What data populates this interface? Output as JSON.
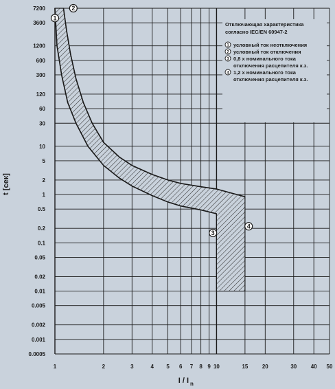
{
  "chart_data": {
    "type": "area",
    "title": "",
    "xlabel": "I / I",
    "xlabel_sub": "n",
    "ylabel": "t [сек]",
    "x_scale": "log",
    "y_scale": "log",
    "xlim": [
      1,
      50
    ],
    "ylim": [
      0.0005,
      7200
    ],
    "grid": true,
    "x_ticks": [
      1,
      2,
      3,
      4,
      5,
      6,
      7,
      8,
      9,
      10,
      15,
      20,
      30,
      40,
      50
    ],
    "x_tick_labels": [
      "1",
      "2",
      "3",
      "4",
      "5",
      "6",
      "7",
      "8",
      "9",
      "10",
      "15",
      "20",
      "30",
      "40",
      "50"
    ],
    "y_ticks": [
      7200,
      3600,
      1200,
      600,
      300,
      120,
      60,
      30,
      10,
      5,
      2,
      1,
      0.5,
      0.2,
      0.1,
      0.05,
      0.02,
      0.01,
      0.005,
      0.002,
      0.001,
      0.0005
    ],
    "y_tick_labels": [
      "7200",
      "3600",
      "1200",
      "600",
      "300",
      "120",
      "60",
      "30",
      "10",
      "5",
      "2",
      "1",
      "0.5",
      "0.2",
      "0.1",
      "0.05",
      "0.02",
      "0.01",
      "0.005",
      "0.002",
      "0.001",
      "0.0005"
    ],
    "series": [
      {
        "points": [
          [
            1.13,
            7200
          ],
          [
            1.18,
            2500
          ],
          [
            1.25,
            800
          ],
          [
            1.35,
            250
          ],
          [
            1.5,
            80
          ],
          [
            1.7,
            30
          ],
          [
            2.0,
            12
          ],
          [
            2.5,
            6
          ],
          [
            3.0,
            4
          ],
          [
            4.0,
            2.6
          ],
          [
            5.0,
            2.0
          ],
          [
            6.0,
            1.7
          ],
          [
            8.0,
            1.45
          ],
          [
            10.0,
            1.3
          ],
          [
            12.0,
            1.1
          ],
          [
            15.0,
            0.9
          ]
        ]
      },
      {
        "points": [
          [
            1.0,
            7200
          ],
          [
            1.03,
            1200
          ],
          [
            1.1,
            300
          ],
          [
            1.2,
            80
          ],
          [
            1.35,
            30
          ],
          [
            1.6,
            10
          ],
          [
            2.0,
            4
          ],
          [
            2.5,
            2.2
          ],
          [
            3.0,
            1.5
          ],
          [
            4.0,
            0.95
          ],
          [
            5.0,
            0.7
          ],
          [
            6.0,
            0.58
          ],
          [
            8.0,
            0.48
          ],
          [
            10.0,
            0.4
          ]
        ]
      }
    ],
    "shaded_band": {
      "x_from": 10,
      "x_to": 15,
      "y_from": 0.01
    },
    "markers": [
      {
        "label": "1",
        "x": 1.0,
        "y": 4500
      },
      {
        "label": "2",
        "x": 1.3,
        "y": 7200
      },
      {
        "label": "3",
        "x": 9.5,
        "y": 0.16
      },
      {
        "label": "4",
        "x": 15.8,
        "y": 0.22
      }
    ],
    "legend_text": {
      "heading": [
        "Отключающая характеристика",
        "согласно IEC/EN 60947-2"
      ],
      "items": [
        {
          "num": "1",
          "lines": [
            "условный ток неотключения"
          ]
        },
        {
          "num": "2",
          "lines": [
            "условный ток отключения"
          ]
        },
        {
          "num": "3",
          "lines": [
            "0,8 x номинального тока",
            "отключения расцепителя к.з."
          ]
        },
        {
          "num": "4",
          "lines": [
            "1,2 x номинального тока",
            "отключения расцепителя к.з."
          ]
        }
      ]
    },
    "colors": {
      "background": "#c9d2dc",
      "grid": "#1a1a1a",
      "band_fill": "#c9d2dc",
      "hatch": "#333333"
    }
  }
}
